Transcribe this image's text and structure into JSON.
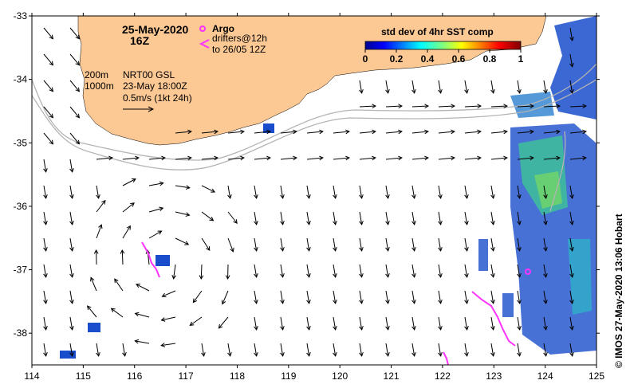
{
  "map": {
    "date_label": "25-May-2020",
    "time_label": "16Z",
    "lat_labels": [
      "-33",
      "-34",
      "-35",
      "-36",
      "-37",
      "-38"
    ],
    "lon_labels": [
      "114",
      "115",
      "116",
      "117",
      "118",
      "119",
      "120",
      "121",
      "122",
      "123",
      "124",
      "125"
    ],
    "lat_range": [
      -38.5,
      -33
    ],
    "lon_range": [
      114,
      125
    ],
    "land_color": "#fcc894",
    "legend": {
      "argo_label": "Argo",
      "drifters_label": "drifters@12h",
      "drifters_to_label": "to 26/05 12Z",
      "argo_color": "#ff33ff"
    },
    "colorbar": {
      "title": "std dev of 4hr SST comp",
      "ticks": [
        "0",
        "0.2",
        "0.4",
        "0.6",
        "0.8",
        "1"
      ],
      "range": [
        0,
        1
      ]
    },
    "info": {
      "depth_200": "200m",
      "depth_1000": "1000m",
      "product": "NRT00 GSL",
      "product_date": "23-May 18:00Z",
      "scale": "0.5m/s (1kt 24h)"
    },
    "credit": "© IMOS 27-May-2020 13:06 Hobart"
  }
}
